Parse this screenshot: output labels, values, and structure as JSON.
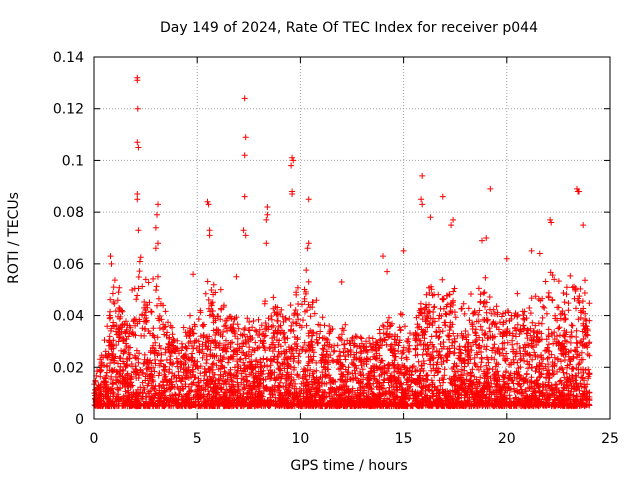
{
  "chart_data": {
    "type": "scatter",
    "title": "Day 149 of 2024, Rate Of TEC Index for receiver p044",
    "xlabel": "GPS time / hours",
    "ylabel": "ROTI / TECUs",
    "xlim": [
      0,
      25
    ],
    "ylim": [
      0,
      0.14
    ],
    "xticks": [
      0,
      5,
      10,
      15,
      20,
      25
    ],
    "yticks": [
      0,
      0.02,
      0.04,
      0.06,
      0.08,
      0.1,
      0.12,
      0.14
    ],
    "xtick_labels": [
      "0",
      "5",
      "10",
      "15",
      "20",
      "25"
    ],
    "ytick_labels": [
      "0",
      "0.02",
      "0.04",
      "0.06",
      "0.08",
      "0.1",
      "0.12",
      "0.14"
    ],
    "grid": true,
    "marker": "+",
    "marker_color": "#ff0000",
    "spikes": [
      {
        "x": 2.1,
        "y": 0.132
      },
      {
        "x": 2.1,
        "y": 0.131
      },
      {
        "x": 2.12,
        "y": 0.12
      },
      {
        "x": 2.1,
        "y": 0.107
      },
      {
        "x": 2.15,
        "y": 0.105
      },
      {
        "x": 2.1,
        "y": 0.087
      },
      {
        "x": 2.1,
        "y": 0.085
      },
      {
        "x": 2.15,
        "y": 0.073
      },
      {
        "x": 3.1,
        "y": 0.083
      },
      {
        "x": 3.05,
        "y": 0.079
      },
      {
        "x": 3.0,
        "y": 0.074
      },
      {
        "x": 3.1,
        "y": 0.068
      },
      {
        "x": 3.0,
        "y": 0.066
      },
      {
        "x": 3.1,
        "y": 0.055
      },
      {
        "x": 5.5,
        "y": 0.084
      },
      {
        "x": 5.55,
        "y": 0.083
      },
      {
        "x": 5.6,
        "y": 0.073
      },
      {
        "x": 5.6,
        "y": 0.071
      },
      {
        "x": 7.3,
        "y": 0.124
      },
      {
        "x": 7.35,
        "y": 0.109
      },
      {
        "x": 7.3,
        "y": 0.102
      },
      {
        "x": 7.3,
        "y": 0.086
      },
      {
        "x": 7.25,
        "y": 0.073
      },
      {
        "x": 7.35,
        "y": 0.071
      },
      {
        "x": 8.4,
        "y": 0.082
      },
      {
        "x": 8.4,
        "y": 0.079
      },
      {
        "x": 8.35,
        "y": 0.077
      },
      {
        "x": 8.35,
        "y": 0.068
      },
      {
        "x": 9.6,
        "y": 0.101
      },
      {
        "x": 9.65,
        "y": 0.1
      },
      {
        "x": 9.55,
        "y": 0.098
      },
      {
        "x": 9.6,
        "y": 0.088
      },
      {
        "x": 9.6,
        "y": 0.087
      },
      {
        "x": 10.4,
        "y": 0.085
      },
      {
        "x": 10.4,
        "y": 0.068
      },
      {
        "x": 10.35,
        "y": 0.066
      },
      {
        "x": 0.8,
        "y": 0.063
      },
      {
        "x": 0.85,
        "y": 0.06
      },
      {
        "x": 15.9,
        "y": 0.094
      },
      {
        "x": 15.85,
        "y": 0.085
      },
      {
        "x": 15.9,
        "y": 0.083
      },
      {
        "x": 16.3,
        "y": 0.078
      },
      {
        "x": 16.9,
        "y": 0.086
      },
      {
        "x": 17.4,
        "y": 0.077
      },
      {
        "x": 17.3,
        "y": 0.075
      },
      {
        "x": 19.2,
        "y": 0.089
      },
      {
        "x": 19.0,
        "y": 0.07
      },
      {
        "x": 18.8,
        "y": 0.069
      },
      {
        "x": 22.1,
        "y": 0.077
      },
      {
        "x": 22.15,
        "y": 0.076
      },
      {
        "x": 23.4,
        "y": 0.089
      },
      {
        "x": 23.45,
        "y": 0.088
      },
      {
        "x": 23.5,
        "y": 0.088
      },
      {
        "x": 23.7,
        "y": 0.075
      },
      {
        "x": 14.0,
        "y": 0.063
      },
      {
        "x": 14.2,
        "y": 0.057
      },
      {
        "x": 15.0,
        "y": 0.065
      },
      {
        "x": 6.9,
        "y": 0.055
      },
      {
        "x": 4.8,
        "y": 0.056
      },
      {
        "x": 12.0,
        "y": 0.053
      },
      {
        "x": 21.2,
        "y": 0.065
      },
      {
        "x": 20.0,
        "y": 0.062
      },
      {
        "x": 21.6,
        "y": 0.064
      }
    ],
    "activity_profile": [
      [
        0.0,
        0.015
      ],
      [
        0.3,
        0.022
      ],
      [
        0.5,
        0.028
      ],
      [
        0.8,
        0.045
      ],
      [
        1.0,
        0.052
      ],
      [
        1.3,
        0.045
      ],
      [
        1.6,
        0.04
      ],
      [
        1.9,
        0.045
      ],
      [
        2.2,
        0.055
      ],
      [
        2.5,
        0.05
      ],
      [
        2.8,
        0.048
      ],
      [
        3.1,
        0.05
      ],
      [
        3.4,
        0.045
      ],
      [
        3.8,
        0.035
      ],
      [
        4.2,
        0.03
      ],
      [
        4.6,
        0.035
      ],
      [
        5.0,
        0.04
      ],
      [
        5.3,
        0.045
      ],
      [
        5.7,
        0.05
      ],
      [
        6.0,
        0.045
      ],
      [
        6.4,
        0.042
      ],
      [
        6.8,
        0.04
      ],
      [
        7.1,
        0.03
      ],
      [
        7.4,
        0.035
      ],
      [
        7.8,
        0.035
      ],
      [
        8.2,
        0.042
      ],
      [
        8.6,
        0.045
      ],
      [
        9.0,
        0.042
      ],
      [
        9.4,
        0.04
      ],
      [
        9.8,
        0.045
      ],
      [
        10.2,
        0.052
      ],
      [
        10.6,
        0.045
      ],
      [
        11.0,
        0.038
      ],
      [
        11.4,
        0.035
      ],
      [
        11.8,
        0.032
      ],
      [
        12.2,
        0.035
      ],
      [
        12.6,
        0.033
      ],
      [
        13.0,
        0.03
      ],
      [
        13.4,
        0.028
      ],
      [
        13.8,
        0.035
      ],
      [
        14.2,
        0.04
      ],
      [
        14.6,
        0.035
      ],
      [
        15.0,
        0.038
      ],
      [
        15.4,
        0.028
      ],
      [
        15.8,
        0.045
      ],
      [
        16.2,
        0.05
      ],
      [
        16.6,
        0.045
      ],
      [
        17.0,
        0.052
      ],
      [
        17.4,
        0.05
      ],
      [
        17.8,
        0.04
      ],
      [
        18.2,
        0.042
      ],
      [
        18.6,
        0.045
      ],
      [
        19.0,
        0.05
      ],
      [
        19.4,
        0.045
      ],
      [
        19.8,
        0.042
      ],
      [
        20.2,
        0.045
      ],
      [
        20.6,
        0.042
      ],
      [
        21.0,
        0.04
      ],
      [
        21.4,
        0.045
      ],
      [
        21.8,
        0.048
      ],
      [
        22.2,
        0.05
      ],
      [
        22.6,
        0.045
      ],
      [
        23.0,
        0.048
      ],
      [
        23.4,
        0.055
      ],
      [
        23.7,
        0.05
      ],
      [
        24.0,
        0.04
      ]
    ],
    "baseline": 0.005
  }
}
